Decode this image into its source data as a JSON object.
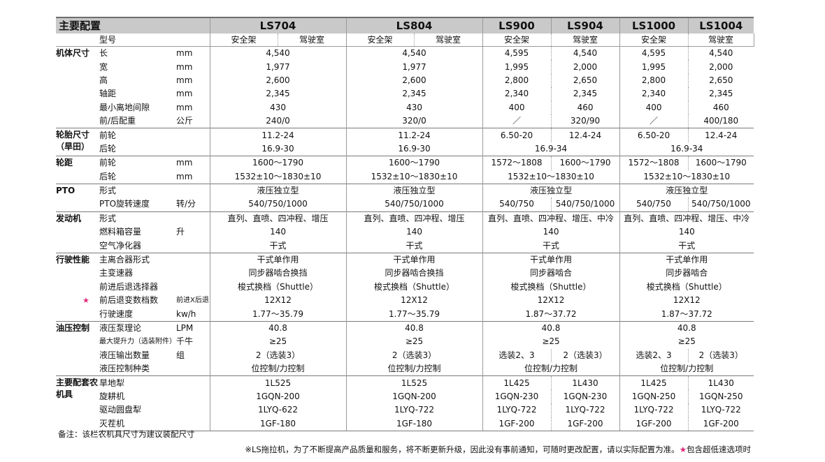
{
  "header": {
    "title": "主要配置",
    "models": [
      "LS704",
      "LS804",
      "LS900",
      "LS904",
      "LS1000",
      "LS1004"
    ],
    "row2_label": "型号",
    "row2_subs": [
      "安全架",
      "驾驶室",
      "安全架",
      "驾驶室",
      "安全架",
      "驾驶室",
      "安全架",
      "驾驶室",
      "安全架",
      "驾驶室"
    ]
  },
  "groups": [
    {
      "name": "机体尺寸",
      "rows": [
        {
          "item": "长",
          "unit": "mm",
          "cells": [
            {
              "v": "4,540",
              "s": 2
            },
            {
              "v": "4,540",
              "s": 2
            },
            {
              "v": "4,595",
              "s": 1
            },
            {
              "v": "4,540",
              "s": 1
            },
            {
              "v": "4,595",
              "s": 1
            },
            {
              "v": "4,540",
              "s": 1
            }
          ]
        },
        {
          "item": "宽",
          "unit": "mm",
          "cells": [
            {
              "v": "1,977",
              "s": 2
            },
            {
              "v": "1,977",
              "s": 2
            },
            {
              "v": "1,995",
              "s": 1
            },
            {
              "v": "2,000",
              "s": 1
            },
            {
              "v": "1,995",
              "s": 1
            },
            {
              "v": "2,000",
              "s": 1
            }
          ]
        },
        {
          "item": "高",
          "unit": "mm",
          "cells": [
            {
              "v": "2,600",
              "s": 2
            },
            {
              "v": "2,600",
              "s": 2
            },
            {
              "v": "2,800",
              "s": 1
            },
            {
              "v": "2,650",
              "s": 1
            },
            {
              "v": "2,800",
              "s": 1
            },
            {
              "v": "2,650",
              "s": 1
            }
          ]
        },
        {
          "item": "轴距",
          "unit": "mm",
          "cells": [
            {
              "v": "2,345",
              "s": 2
            },
            {
              "v": "2,345",
              "s": 2
            },
            {
              "v": "2,340",
              "s": 1
            },
            {
              "v": "2,345",
              "s": 1
            },
            {
              "v": "2,340",
              "s": 1
            },
            {
              "v": "2,345",
              "s": 1
            }
          ]
        },
        {
          "item": "最小离地间隙",
          "unit": "mm",
          "cells": [
            {
              "v": "430",
              "s": 2
            },
            {
              "v": "430",
              "s": 2
            },
            {
              "v": "400",
              "s": 1
            },
            {
              "v": "460",
              "s": 1
            },
            {
              "v": "400",
              "s": 1
            },
            {
              "v": "460",
              "s": 1
            }
          ]
        },
        {
          "item": "前/后配重",
          "unit": "公斤",
          "cells": [
            {
              "v": "240/0",
              "s": 2
            },
            {
              "v": "320/0",
              "s": 2
            },
            {
              "v": "／",
              "s": 1
            },
            {
              "v": "320/90",
              "s": 1
            },
            {
              "v": "／",
              "s": 1
            },
            {
              "v": "400/180",
              "s": 1
            }
          ]
        }
      ]
    },
    {
      "name": "轮胎尺寸（旱田）",
      "rows": [
        {
          "item": "前轮",
          "unit": "",
          "cells": [
            {
              "v": "11.2-24",
              "s": 2
            },
            {
              "v": "11.2-24",
              "s": 2
            },
            {
              "v": "6.50-20",
              "s": 1
            },
            {
              "v": "12.4-24",
              "s": 1
            },
            {
              "v": "6.50-20",
              "s": 1
            },
            {
              "v": "12.4-24",
              "s": 1
            }
          ]
        },
        {
          "item": "后轮",
          "unit": "",
          "cells": [
            {
              "v": "16.9-30",
              "s": 2
            },
            {
              "v": "16.9-30",
              "s": 2
            },
            {
              "v": "16.9-34",
              "s": 2
            },
            {
              "v": "16.9-34",
              "s": 2
            }
          ]
        }
      ]
    },
    {
      "name": "轮距",
      "rows": [
        {
          "item": "前轮",
          "unit": "mm",
          "cells": [
            {
              "v": "1600～1790",
              "s": 2
            },
            {
              "v": "1600～1790",
              "s": 2
            },
            {
              "v": "1572～1808",
              "s": 1
            },
            {
              "v": "1600～1790",
              "s": 1
            },
            {
              "v": "1572～1808",
              "s": 1
            },
            {
              "v": "1600～1790",
              "s": 1
            }
          ]
        },
        {
          "item": "后轮",
          "unit": "mm",
          "cells": [
            {
              "v": "1532±10～1830±10",
              "s": 2
            },
            {
              "v": "1532±10～1830±10",
              "s": 2
            },
            {
              "v": "1532±10～1830±10",
              "s": 2
            },
            {
              "v": "1532±10～1830±10",
              "s": 2
            }
          ]
        }
      ]
    },
    {
      "name": "PTO",
      "rows": [
        {
          "item": "形式",
          "unit": "",
          "cells": [
            {
              "v": "液压独立型",
              "s": 2
            },
            {
              "v": "液压独立型",
              "s": 2
            },
            {
              "v": "液压独立型",
              "s": 2
            },
            {
              "v": "液压独立型",
              "s": 2
            }
          ]
        },
        {
          "item": "PTO旋转速度",
          "unit": "转/分",
          "cells": [
            {
              "v": "540/750/1000",
              "s": 2
            },
            {
              "v": "540/750/1000",
              "s": 2
            },
            {
              "v": "540/750",
              "s": 1
            },
            {
              "v": "540/750/1000",
              "s": 1
            },
            {
              "v": "540/750",
              "s": 1
            },
            {
              "v": "540/750/1000",
              "s": 1
            }
          ]
        }
      ]
    },
    {
      "name": "发动机",
      "rows": [
        {
          "item": "形式",
          "unit": "",
          "cells": [
            {
              "v": "直列、直喷、四冲程、增压",
              "s": 2
            },
            {
              "v": "直列、直喷、四冲程、增压",
              "s": 2
            },
            {
              "v": "直列、直喷、四冲程、增压、中冷",
              "s": 2
            },
            {
              "v": "直列、直喷、四冲程、增压、中冷",
              "s": 2
            }
          ]
        },
        {
          "item": "燃料箱容量",
          "unit": "升",
          "cells": [
            {
              "v": "140",
              "s": 2
            },
            {
              "v": "140",
              "s": 2
            },
            {
              "v": "140",
              "s": 2
            },
            {
              "v": "140",
              "s": 2
            }
          ]
        },
        {
          "item": "空气净化器",
          "unit": "",
          "cells": [
            {
              "v": "干式",
              "s": 2
            },
            {
              "v": "干式",
              "s": 2
            },
            {
              "v": "干式",
              "s": 2
            },
            {
              "v": "干式",
              "s": 2
            }
          ]
        }
      ]
    },
    {
      "name": "行驶性能",
      "rows": [
        {
          "item": "主离合器形式",
          "unit": "",
          "cells": [
            {
              "v": "干式单作用",
              "s": 2
            },
            {
              "v": "干式单作用",
              "s": 2
            },
            {
              "v": "干式单作用",
              "s": 2
            },
            {
              "v": "干式单作用",
              "s": 2
            }
          ]
        },
        {
          "item": "主变速器",
          "unit": "",
          "cells": [
            {
              "v": "同步器啮合换挡",
              "s": 2
            },
            {
              "v": "同步器啮合换挡",
              "s": 2
            },
            {
              "v": "同步器啮合",
              "s": 2
            },
            {
              "v": "同步器啮合",
              "s": 2
            }
          ]
        },
        {
          "item": "前进后退选择器",
          "unit": "",
          "cells": [
            {
              "v": "梭式换档（Shuttle）",
              "s": 2
            },
            {
              "v": "梭式换档（Shuttle）",
              "s": 2
            },
            {
              "v": "梭式换档（Shuttle）",
              "s": 2
            },
            {
              "v": "梭式换档（Shuttle）",
              "s": 2
            }
          ]
        },
        {
          "item": "前后退变数档数",
          "unit": "前进X后退",
          "star": "★",
          "cells": [
            {
              "v": "12X12",
              "s": 2
            },
            {
              "v": "12X12",
              "s": 2
            },
            {
              "v": "12X12",
              "s": 2
            },
            {
              "v": "12X12",
              "s": 2
            }
          ]
        },
        {
          "item": "行驶速度",
          "unit": "kw/h",
          "cells": [
            {
              "v": "1.77～35.79",
              "s": 2
            },
            {
              "v": "1.77～35.79",
              "s": 2
            },
            {
              "v": "1.87～37.72",
              "s": 2
            },
            {
              "v": "1.87～37.72",
              "s": 2
            }
          ]
        }
      ]
    },
    {
      "name": "油压控制",
      "rows": [
        {
          "item": "液压泵理论",
          "unit": "LPM",
          "cells": [
            {
              "v": "40.8",
              "s": 2
            },
            {
              "v": "40.8",
              "s": 2
            },
            {
              "v": "40.8",
              "s": 2
            },
            {
              "v": "40.8",
              "s": 2
            }
          ]
        },
        {
          "item": "最大提升力（选装附件）",
          "unit": "千牛",
          "small": true,
          "cells": [
            {
              "v": "≥25",
              "s": 2
            },
            {
              "v": "≥25",
              "s": 2
            },
            {
              "v": "≥25",
              "s": 2
            },
            {
              "v": "≥25",
              "s": 2
            }
          ]
        },
        {
          "item": "液压输出数量",
          "unit": "组",
          "cells": [
            {
              "v": "2（选装3）",
              "s": 2
            },
            {
              "v": "2（选装3）",
              "s": 2
            },
            {
              "v": "选装2、3",
              "s": 1
            },
            {
              "v": "2（选装3）",
              "s": 1
            },
            {
              "v": "选装2、3",
              "s": 1
            },
            {
              "v": "2（选装3）",
              "s": 1
            }
          ]
        },
        {
          "item": "液压控制种类",
          "unit": "",
          "cells": [
            {
              "v": "位控制/力控制",
              "s": 2
            },
            {
              "v": "位控制/力控制",
              "s": 2
            },
            {
              "v": "位控制/力控制",
              "s": 2
            },
            {
              "v": "位控制/力控制",
              "s": 2
            }
          ]
        }
      ]
    },
    {
      "name": "主要配套农机具",
      "rows": [
        {
          "item": "旱地犁",
          "unit": "",
          "cells": [
            {
              "v": "1L525",
              "s": 2
            },
            {
              "v": "1L525",
              "s": 2
            },
            {
              "v": "1L425",
              "s": 1
            },
            {
              "v": "1L430",
              "s": 1
            },
            {
              "v": "1L425",
              "s": 1
            },
            {
              "v": "1L430",
              "s": 1
            }
          ]
        },
        {
          "item": "旋耕机",
          "unit": "",
          "cells": [
            {
              "v": "1GQN-200",
              "s": 2
            },
            {
              "v": "1GQN-200",
              "s": 2
            },
            {
              "v": "1GQN-230",
              "s": 1
            },
            {
              "v": "1GQN-230",
              "s": 1
            },
            {
              "v": "1GQN-250",
              "s": 1
            },
            {
              "v": "1GQN-250",
              "s": 1
            }
          ]
        },
        {
          "item": "驱动圆盘犁",
          "unit": "",
          "cells": [
            {
              "v": "1LYQ-622",
              "s": 2
            },
            {
              "v": "1LYQ-722",
              "s": 2
            },
            {
              "v": "1LYQ-722",
              "s": 1
            },
            {
              "v": "1LYQ-722",
              "s": 1
            },
            {
              "v": "1LYQ-722",
              "s": 1
            },
            {
              "v": "1LYQ-722",
              "s": 1
            }
          ]
        },
        {
          "item": "灭茬机",
          "unit": "",
          "cells": [
            {
              "v": "1GF-180",
              "s": 2
            },
            {
              "v": "1GF-180",
              "s": 2
            },
            {
              "v": "1GF-200",
              "s": 1
            },
            {
              "v": "1GF-200",
              "s": 1
            },
            {
              "v": "1GF-200",
              "s": 1
            },
            {
              "v": "1GF-200",
              "s": 1
            }
          ]
        }
      ]
    }
  ],
  "notes": {
    "remark": "备注：该栏农机具尺寸为建议装配尺寸",
    "footer_text": "※LS拖拉机，为了不断提高产品质量和服务，将不断更新升级，因此没有事前通知，可随时更改配置，请以实际配置为准。",
    "footer_star": "★",
    "footer_star_text": "包含超低速选项时"
  }
}
